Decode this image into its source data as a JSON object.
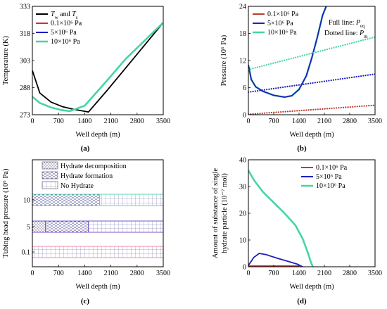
{
  "colors": {
    "black": "#000000",
    "red": "#c0392b",
    "blue": "#1f1fbf",
    "green": "#45d6a0",
    "green_dark": "#1f9c78",
    "pink": "#f08aa8",
    "purple": "#7b57c9",
    "teal": "#5fd3b3"
  },
  "chart_data": [
    {
      "type": "line",
      "panel_label": "(a)",
      "xlabel": "Well depth (m)",
      "ylabel": "Temperature (K)",
      "xlim": [
        0,
        3500
      ],
      "ylim": [
        273,
        333
      ],
      "xticks": [
        0,
        700,
        1400,
        2100,
        2800,
        3500
      ],
      "yticks": [
        273,
        288,
        303,
        318,
        333
      ],
      "legend": [
        "T_w and T_s",
        "0.1×10⁶ Pa",
        "5×10⁶ Pa",
        "10×10⁶ Pa"
      ],
      "legend_main": "T",
      "legend_sub1": "w",
      "legend_mid": " and ",
      "legend_main2": "T",
      "legend_sub2": "s",
      "series": [
        {
          "color_key": "black",
          "x": [
            0,
            200,
            500,
            800,
            1100,
            1500,
            2000,
            2500,
            3000,
            3500
          ],
          "y": [
            297.5,
            285,
            280,
            277.5,
            276,
            274.5,
            286.5,
            299,
            311.5,
            324
          ]
        },
        {
          "color_key": "red",
          "x": [
            0,
            200,
            500,
            800,
            1000,
            1400,
            2000,
            2500,
            3000,
            3500
          ],
          "y": [
            283,
            279.5,
            277,
            275.5,
            275,
            278,
            292,
            304,
            314,
            324
          ]
        },
        {
          "color_key": "blue",
          "x": [
            0,
            200,
            500,
            800,
            1000,
            1400,
            2000,
            2500,
            3000,
            3500
          ],
          "y": [
            283,
            279.5,
            277,
            275.5,
            275,
            278,
            292,
            304,
            314,
            324
          ]
        },
        {
          "color_key": "green",
          "x": [
            0,
            200,
            500,
            800,
            1000,
            1400,
            2000,
            2500,
            3000,
            3500
          ],
          "y": [
            283,
            279.5,
            277,
            275.5,
            275,
            278,
            292,
            304,
            314,
            324
          ]
        }
      ]
    },
    {
      "type": "line",
      "panel_label": "(b)",
      "xlabel": "Well depth (m)",
      "ylabel": "Pressure (10⁶ Pa)",
      "xlim": [
        0,
        3500
      ],
      "ylim": [
        0,
        24
      ],
      "xticks": [
        0,
        700,
        1400,
        2100,
        2800,
        3500
      ],
      "yticks": [
        0,
        6,
        12,
        18,
        24
      ],
      "legend": [
        "0.1×10⁶ Pa",
        "5×10⁶ Pa",
        "10×10⁶ Pa"
      ],
      "annotation_full_prefix": "Full line: ",
      "annotation_full_var": "P",
      "annotation_full_sub": "eq",
      "annotation_dot_prefix": "Dotted line: ",
      "annotation_dot_var": "P",
      "annotation_dot_sub": "m",
      "series": [
        {
          "style": "solid",
          "color_key": "green",
          "x": [
            0,
            80,
            200,
            400,
            700,
            1000,
            1200,
            1400,
            1600,
            1750,
            1900,
            2050,
            2150
          ],
          "y": [
            11,
            7.8,
            6.2,
            5.2,
            4.3,
            3.9,
            4.2,
            5.6,
            8.6,
            12.5,
            17,
            22,
            24
          ]
        },
        {
          "style": "solid",
          "color_key": "blue",
          "x": [
            0,
            80,
            200,
            400,
            700,
            1000,
            1200,
            1400,
            1600,
            1750,
            1900,
            2050,
            2150
          ],
          "y": [
            11,
            7.8,
            6.2,
            5.2,
            4.3,
            3.9,
            4.2,
            5.6,
            8.6,
            12.5,
            17,
            22,
            24
          ]
        },
        {
          "style": "dotted",
          "color_key": "red",
          "x": [
            0,
            3500
          ],
          "y": [
            0.1,
            2.1
          ]
        },
        {
          "style": "dotted",
          "color_key": "blue",
          "x": [
            0,
            3500
          ],
          "y": [
            5,
            9
          ]
        },
        {
          "style": "dotted",
          "color_key": "green",
          "x": [
            0,
            3500
          ],
          "y": [
            10,
            17.2
          ]
        }
      ]
    },
    {
      "type": "bar",
      "panel_label": "(c)",
      "xlabel": "Well depth (m)",
      "ylabel": "Tubing head pressure (10⁶ Pa)",
      "xlim": [
        0,
        3500
      ],
      "xticks": [
        0,
        700,
        1400,
        2100,
        2800,
        3500
      ],
      "categories": [
        "0.1",
        "5",
        "10"
      ],
      "legend": [
        "Hydrate decomposition",
        "Hydrate formation",
        "No Hydrate"
      ],
      "segments": [
        [
          {
            "type": "none",
            "from": 0,
            "to": 3500
          }
        ],
        [
          {
            "type": "decomposition",
            "from": 0,
            "to": 350
          },
          {
            "type": "formation",
            "from": 350,
            "to": 1500
          },
          {
            "type": "none",
            "from": 1500,
            "to": 3500
          }
        ],
        [
          {
            "type": "formation",
            "from": 0,
            "to": 1800
          },
          {
            "type": "none",
            "from": 1800,
            "to": 3500
          }
        ]
      ]
    },
    {
      "type": "line",
      "panel_label": "(d)",
      "xlabel": "Well depth (m)",
      "ylabel_line1": "Amount of substance of single",
      "ylabel_line2": "hydrate particle (10⁻⁷ mol)",
      "xlim": [
        0,
        3500
      ],
      "ylim": [
        0,
        40
      ],
      "xticks": [
        0,
        700,
        1400,
        2100,
        2800,
        3500
      ],
      "yticks": [
        0,
        10,
        20,
        30,
        40
      ],
      "legend": [
        "0.1×10⁶ Pa",
        "5×10⁶ Pa",
        "10×10⁶ Pa"
      ],
      "series": [
        {
          "color_key": "red",
          "x": [
            0,
            1400
          ],
          "y": [
            0.3,
            0.3
          ]
        },
        {
          "color_key": "blue",
          "x": [
            0,
            150,
            300,
            500,
            800,
            1100,
            1350,
            1500
          ],
          "y": [
            0.5,
            3.5,
            5,
            4.5,
            3.2,
            2,
            1,
            0
          ]
        },
        {
          "color_key": "green",
          "x": [
            0,
            150,
            400,
            700,
            1000,
            1300,
            1500,
            1650,
            1720,
            1780
          ],
          "y": [
            36,
            32.5,
            28,
            24,
            20,
            15.5,
            10.5,
            5,
            2,
            0
          ]
        }
      ]
    }
  ]
}
